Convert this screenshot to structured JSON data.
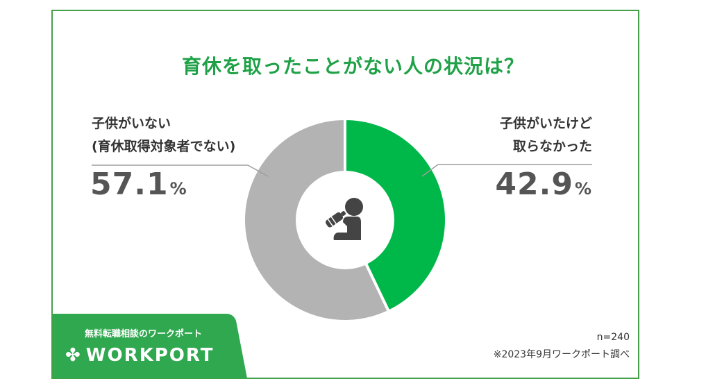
{
  "title": "育休を取ったことがない人の状況は？",
  "chart_data": {
    "type": "pie",
    "donut": true,
    "slices": [
      {
        "label_line1": "子供がいたけど",
        "label_line2": "取らなかった",
        "value": 42.9,
        "value_text": "42.9",
        "unit": "%",
        "color": "#00b84a"
      },
      {
        "label_line1": "子供がいない",
        "label_line2": "(育休取得対象者でない)",
        "value": 57.1,
        "value_text": "57.1",
        "unit": "%",
        "color": "#b3b3b3"
      }
    ],
    "center_icon": "baby-with-bottle-icon"
  },
  "footer": {
    "badge_text": "無料転職相談のワークポート",
    "logo_text": "WORKPORT",
    "logo_icon": "clover-icon",
    "sample": "n=240",
    "source": "※2023年9月ワークポート調べ"
  },
  "colors": {
    "frame": "#43a047",
    "title": "#1fa247",
    "green": "#00b84a",
    "gray": "#b3b3b3",
    "badge": "#2fa84f"
  }
}
